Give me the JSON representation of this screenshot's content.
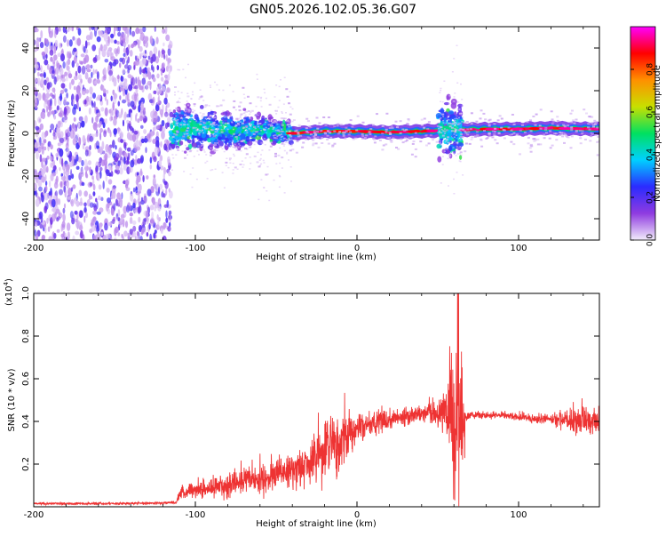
{
  "title": "GN05.2026.102.05.36.G07",
  "chart_data": [
    {
      "type": "heatmap",
      "xlabel": "Height of straight line (km)",
      "ylabel": "Frequency (Hz)",
      "xlim": [
        -200,
        150
      ],
      "ylim": [
        -50,
        50
      ],
      "xticks": [
        "-200",
        "-100",
        "0",
        "100"
      ],
      "xtick_values": [
        -200,
        -100,
        0,
        100
      ],
      "yticks": [
        "-40",
        "-20",
        "0",
        "20",
        "40"
      ],
      "ytick_values": [
        -40,
        -20,
        0,
        20,
        40
      ],
      "colorbar": {
        "label": "Normalized spectral amplitude",
        "range": [
          0,
          1
        ],
        "ticks": [
          "0.0",
          "0.2",
          "0.4",
          "0.6",
          "0.8"
        ],
        "tick_values": [
          0.0,
          0.2,
          0.4,
          0.6,
          0.8
        ],
        "colormap": [
          "#f2ecfb",
          "#8f3be0",
          "#2b2bff",
          "#00d0ff",
          "#00e060",
          "#c8e000",
          "#ff9000",
          "#ff0000",
          "#ff00ff"
        ]
      },
      "regions": [
        {
          "x_range": [
            -200,
            -115
          ],
          "y_range": [
            -50,
            50
          ],
          "intensity": 0.08,
          "pattern": "broadband noise"
        },
        {
          "x_range": [
            -115,
            -40
          ],
          "y_range": [
            -10,
            12
          ],
          "intensity": 0.3,
          "pattern": "diffuse band"
        },
        {
          "x_range": [
            -40,
            60
          ],
          "y_range": [
            -3,
            3
          ],
          "intensity": 0.9,
          "pattern": "narrow tone near 1 Hz"
        },
        {
          "x_range": [
            50,
            65
          ],
          "y_range": [
            -10,
            15
          ],
          "intensity": 0.3,
          "pattern": "burst"
        },
        {
          "x_range": [
            65,
            150
          ],
          "y_range": [
            -1,
            3
          ],
          "intensity": 0.95,
          "pattern": "narrow tone near 2 Hz"
        }
      ],
      "ridge": {
        "x": [
          -115,
          -100,
          -80,
          -60,
          -40,
          -20,
          0,
          20,
          40,
          60,
          80,
          100,
          120,
          150
        ],
        "y": [
          2,
          3,
          1,
          2,
          0,
          1,
          1,
          0.5,
          1,
          1.5,
          2,
          2,
          2.5,
          2
        ]
      }
    },
    {
      "type": "line",
      "xlabel": "Height of straight line (km)",
      "ylabel": "SNR (10 * v/v)",
      "y_multiplier_label": "(x10",
      "y_multiplier_exp": "4",
      "xlim": [
        -200,
        150
      ],
      "ylim": [
        0,
        1.0
      ],
      "xticks": [
        "-200",
        "-100",
        "0",
        "100"
      ],
      "xtick_values": [
        -200,
        -100,
        0,
        100
      ],
      "yticks": [
        "0.2",
        "0.4",
        "0.6",
        "0.8",
        "1.0"
      ],
      "ytick_values": [
        0.2,
        0.4,
        0.6,
        0.8,
        1.0
      ],
      "series": [
        {
          "color": "#ee3333",
          "x": [
            -200,
            -180,
            -160,
            -140,
            -120,
            -112,
            -110,
            -100,
            -90,
            -80,
            -70,
            -60,
            -50,
            -40,
            -30,
            -25,
            -20,
            -15,
            -10,
            -5,
            0,
            10,
            20,
            30,
            40,
            50,
            55,
            58,
            60,
            62,
            65,
            68,
            70,
            80,
            90,
            100,
            110,
            120,
            130,
            140,
            150
          ],
          "y": [
            0.015,
            0.015,
            0.015,
            0.016,
            0.018,
            0.02,
            0.06,
            0.08,
            0.09,
            0.1,
            0.12,
            0.13,
            0.15,
            0.17,
            0.2,
            0.22,
            0.25,
            0.28,
            0.3,
            0.33,
            0.36,
            0.39,
            0.41,
            0.42,
            0.43,
            0.43,
            0.45,
            0.45,
            0.3,
            0.45,
            0.4,
            0.43,
            0.43,
            0.43,
            0.43,
            0.42,
            0.41,
            0.41,
            0.4,
            0.4,
            0.4
          ],
          "spread": [
            0.005,
            0.005,
            0.005,
            0.005,
            0.005,
            0.006,
            0.03,
            0.035,
            0.04,
            0.05,
            0.05,
            0.06,
            0.07,
            0.08,
            0.09,
            0.12,
            0.15,
            0.16,
            0.12,
            0.1,
            0.06,
            0.05,
            0.04,
            0.04,
            0.03,
            0.06,
            0.1,
            0.3,
            0.4,
            0.35,
            0.3,
            0.02,
            0.015,
            0.015,
            0.015,
            0.015,
            0.02,
            0.02,
            0.04,
            0.06,
            0.07
          ]
        }
      ]
    }
  ]
}
